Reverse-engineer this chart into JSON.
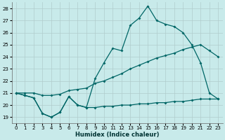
{
  "xlabel": "Humidex (Indice chaleur)",
  "background_color": "#c8eaea",
  "grid_color": "#b0cccc",
  "line_color": "#006666",
  "xlim": [
    -0.5,
    23.5
  ],
  "ylim": [
    18.5,
    28.5
  ],
  "xticks": [
    0,
    1,
    2,
    3,
    4,
    5,
    6,
    7,
    8,
    9,
    10,
    11,
    12,
    13,
    14,
    15,
    16,
    17,
    18,
    19,
    20,
    21,
    22,
    23
  ],
  "yticks": [
    19,
    20,
    21,
    22,
    23,
    24,
    25,
    26,
    27,
    28
  ],
  "line_max_x": [
    0,
    1,
    2,
    3,
    4,
    5,
    6,
    7,
    8,
    9,
    10,
    11,
    12,
    13,
    14,
    15,
    16,
    17,
    18,
    19,
    20,
    21,
    22,
    23
  ],
  "line_max_y": [
    21.0,
    20.8,
    20.6,
    19.3,
    19.0,
    19.4,
    20.7,
    20.0,
    19.8,
    22.2,
    23.5,
    24.7,
    24.5,
    26.6,
    27.2,
    28.2,
    27.0,
    26.7,
    26.5,
    26.0,
    25.0,
    23.5,
    21.0,
    20.5
  ],
  "line_min_x": [
    0,
    1,
    2,
    3,
    4,
    5,
    6,
    7,
    8,
    9,
    10,
    11,
    12,
    13,
    14,
    15,
    16,
    17,
    18,
    19,
    20,
    21,
    22,
    23
  ],
  "line_min_y": [
    21.0,
    20.8,
    20.6,
    19.3,
    19.0,
    19.4,
    20.7,
    20.0,
    19.8,
    19.8,
    19.9,
    19.9,
    20.0,
    20.0,
    20.1,
    20.1,
    20.2,
    20.2,
    20.3,
    20.3,
    20.4,
    20.5,
    20.5,
    20.5
  ],
  "line_avg_x": [
    0,
    1,
    2,
    3,
    4,
    5,
    6,
    7,
    8,
    9,
    10,
    11,
    12,
    13,
    14,
    15,
    16,
    17,
    18,
    19,
    20,
    21,
    22,
    23
  ],
  "line_avg_y": [
    21.0,
    21.0,
    21.0,
    20.8,
    20.8,
    20.9,
    21.2,
    21.3,
    21.4,
    21.8,
    22.0,
    22.3,
    22.6,
    23.0,
    23.3,
    23.6,
    23.9,
    24.1,
    24.3,
    24.6,
    24.8,
    25.0,
    24.5,
    24.0
  ]
}
